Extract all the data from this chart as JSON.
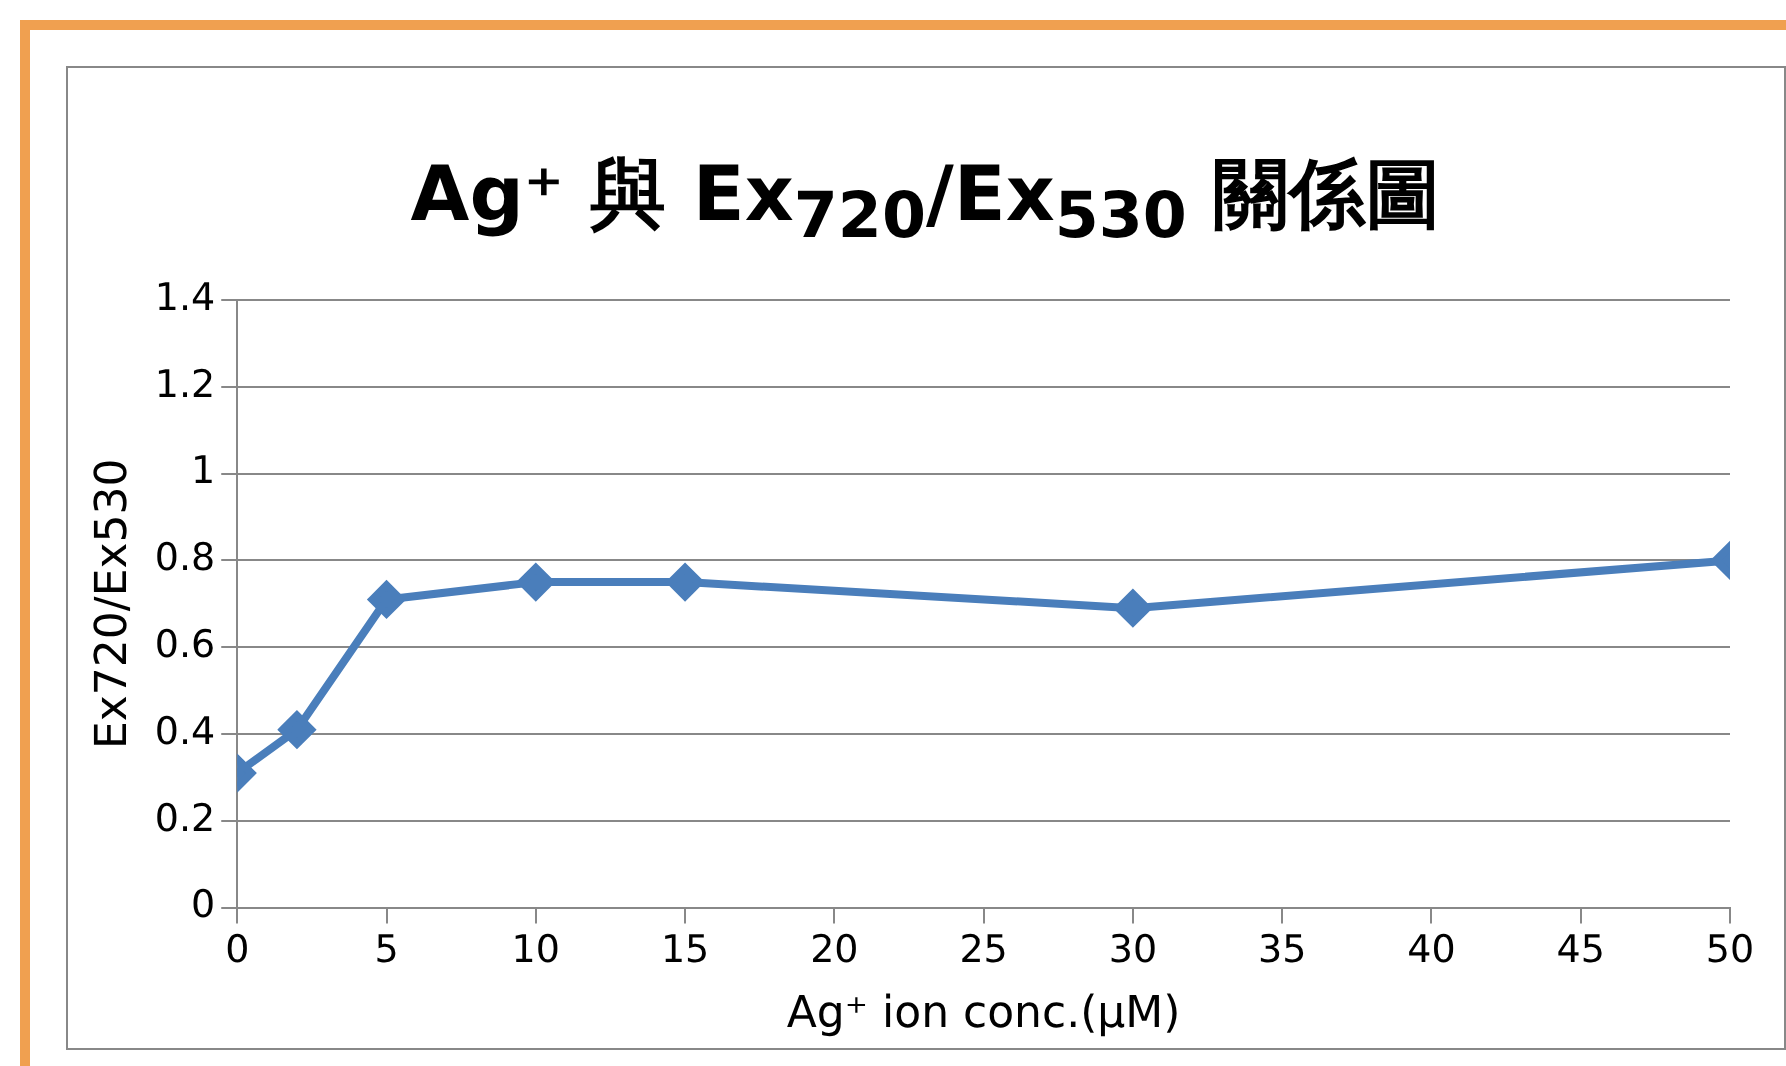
{
  "chart_data": {
    "type": "line",
    "title": "Ag⁺ 與 Ex$_{720}$/Ex$_{530}$ 關係圖",
    "xlabel": "Ag⁺ ion conc.(μM)",
    "ylabel": "Ex720/Ex530",
    "x": [
      0,
      2,
      5,
      10,
      15,
      30,
      50
    ],
    "series": [
      {
        "color": "#4a7ebb",
        "values": [
          0.31,
          0.41,
          0.71,
          0.75,
          0.75,
          0.69,
          0.8
        ]
      }
    ],
    "xlim": [
      0,
      50
    ],
    "xticks": [
      0,
      5,
      10,
      15,
      20,
      25,
      30,
      35,
      40,
      45,
      50
    ],
    "ylim": [
      0,
      1.4
    ],
    "yticks": [
      0,
      0.2,
      0.4,
      0.6,
      0.8,
      1,
      1.2,
      1.4
    ],
    "grid": "y",
    "legend": false,
    "marker": "diamond",
    "line_style": "solid"
  }
}
